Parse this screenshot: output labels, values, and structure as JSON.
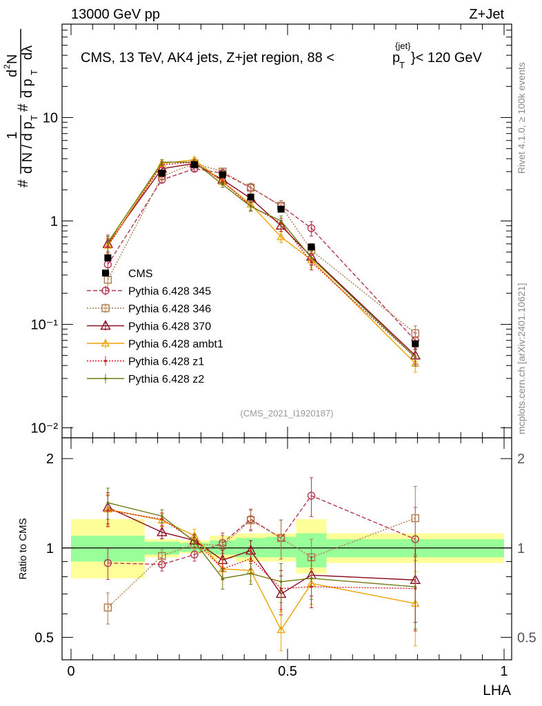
{
  "header": {
    "left": "13000 GeV pp",
    "right": "Z+Jet"
  },
  "title": "CMS, 13 TeV, AK4 jets, Z+jet region, 88 <",
  "title_pt": "p",
  "title_pt_sup": "{jet}",
  "title_pt_sub": "T",
  "title_tail": "}< 120 GeV",
  "side_top": "Rivet 4.1.0, ≥ 100k events",
  "side_bottom": "mcplots.cern.ch [arXiv:2401.10621]",
  "watermark": "(CMS_2021_I1920187)",
  "ylabel_top": {
    "hash1": "#",
    "one": "1",
    "dn": "d N / d p",
    "t": "T",
    "hash2": "#",
    "d2n": "d",
    "two": "2",
    "n": "N",
    "dpt": "d p",
    "dlam": "dλ"
  },
  "ylabel_bottom": "Ratio to CMS",
  "xlabel": "LHA",
  "colors": {
    "cms": "#000000",
    "p345": "#b5334e",
    "p346": "#b07848",
    "p370": "#8b0a1e",
    "ambt1": "#f0a000",
    "z1": "#cc1a1a",
    "z2": "#6f7a10",
    "band_inner": "#99ff99",
    "band_outer": "#ffff99",
    "watermark": "#999999",
    "side": "#888888"
  },
  "chart_data": [
    {
      "type": "line",
      "panel": "main",
      "yscale": "log",
      "xlim": [
        0,
        1
      ],
      "ylim": [
        0.008,
        80
      ],
      "ytick_labels": [
        "10⁻²",
        "10⁻¹",
        "1",
        "10"
      ],
      "ytick_values": [
        0.01,
        0.1,
        1,
        10
      ],
      "bin_edges": [
        0.0,
        0.17,
        0.25,
        0.32,
        0.38,
        0.45,
        0.52,
        0.59,
        1.0
      ],
      "x": [
        0.085,
        0.21,
        0.285,
        0.35,
        0.415,
        0.485,
        0.555,
        0.795
      ],
      "legend_location": "left-middle",
      "series": [
        {
          "name": "CMS",
          "key": "cms",
          "style": "data",
          "values": [
            0.44,
            2.9,
            3.5,
            2.8,
            1.7,
            1.3,
            0.56,
            0.065
          ]
        },
        {
          "name": "Pythia 6.428 345",
          "key": "p345",
          "style": "dashed-circle",
          "values": [
            0.38,
            2.5,
            3.2,
            2.9,
            2.1,
            1.4,
            0.85,
            0.07
          ]
        },
        {
          "name": "Pythia 6.428 346",
          "key": "p346",
          "style": "dotted-square",
          "values": [
            0.27,
            2.7,
            3.6,
            3.0,
            2.1,
            1.4,
            0.52,
            0.082
          ]
        },
        {
          "name": "Pythia 6.428 370",
          "key": "p370",
          "style": "solid-triangle",
          "values": [
            0.6,
            3.2,
            3.6,
            2.5,
            1.65,
            0.9,
            0.45,
            0.05
          ]
        },
        {
          "name": "Pythia 6.428 ambt1",
          "key": "ambt1",
          "style": "solid-smalltriangle",
          "values": [
            0.58,
            3.6,
            3.9,
            2.4,
            1.45,
            0.7,
            0.42,
            0.042
          ]
        },
        {
          "name": "Pythia 6.428 z1",
          "key": "z1",
          "style": "dotted-dot",
          "values": [
            0.57,
            3.5,
            3.7,
            2.4,
            1.4,
            0.95,
            0.4,
            0.048
          ]
        },
        {
          "name": "Pythia 6.428 z2",
          "key": "z2",
          "style": "solid-dot",
          "values": [
            0.62,
            3.7,
            3.7,
            2.25,
            1.38,
            1.0,
            0.44,
            0.048
          ]
        }
      ]
    },
    {
      "type": "line",
      "panel": "ratio",
      "yscale": "log",
      "xlim": [
        0,
        1
      ],
      "ylim": [
        0.42,
        2.35
      ],
      "ylabel": "Ratio to CMS",
      "xlabel": "LHA",
      "ytick_labels": [
        "0.5",
        "1",
        "2"
      ],
      "ytick_values": [
        0.5,
        1,
        2
      ],
      "xtick_labels": [
        "0",
        "0.5",
        "1"
      ],
      "xtick_values": [
        0,
        0.5,
        1
      ],
      "bands": {
        "bin_edges": [
          0.0,
          0.17,
          0.25,
          0.32,
          0.38,
          0.45,
          0.52,
          0.59,
          1.0
        ],
        "inner_low": [
          0.9,
          0.95,
          0.97,
          0.95,
          0.93,
          0.93,
          0.86,
          0.93
        ],
        "inner_high": [
          1.1,
          1.05,
          1.04,
          1.06,
          1.08,
          1.09,
          1.12,
          1.07
        ],
        "outer_low": [
          0.79,
          0.93,
          0.96,
          0.92,
          0.9,
          0.9,
          0.82,
          0.89
        ],
        "outer_high": [
          1.25,
          1.07,
          1.06,
          1.1,
          1.12,
          1.12,
          1.25,
          1.12
        ]
      },
      "series": [
        {
          "name": "Pythia 6.428 345",
          "key": "p345",
          "style": "dashed-circle",
          "values": [
            0.89,
            0.88,
            0.95,
            1.04,
            1.25,
            1.08,
            1.5,
            1.07
          ]
        },
        {
          "name": "Pythia 6.428 346",
          "key": "p346",
          "style": "dotted-square",
          "values": [
            0.63,
            0.94,
            1.03,
            1.02,
            1.24,
            1.08,
            0.93,
            1.26
          ]
        },
        {
          "name": "Pythia 6.428 370",
          "key": "p370",
          "style": "solid-triangle",
          "values": [
            1.37,
            1.13,
            1.06,
            0.91,
            0.98,
            0.7,
            0.81,
            0.78
          ]
        },
        {
          "name": "Pythia 6.428 ambt1",
          "key": "ambt1",
          "style": "solid-smalltriangle",
          "values": [
            1.35,
            1.24,
            1.1,
            0.85,
            0.84,
            0.53,
            0.76,
            0.65
          ]
        },
        {
          "name": "Pythia 6.428 z1",
          "key": "z1",
          "style": "dotted-dot",
          "values": [
            1.34,
            1.25,
            1.06,
            0.85,
            0.92,
            0.73,
            0.74,
            0.73
          ]
        },
        {
          "name": "Pythia 6.428 z2",
          "key": "z2",
          "style": "solid-dot",
          "values": [
            1.42,
            1.28,
            1.05,
            0.79,
            0.82,
            0.77,
            0.79,
            0.74
          ]
        }
      ]
    }
  ]
}
